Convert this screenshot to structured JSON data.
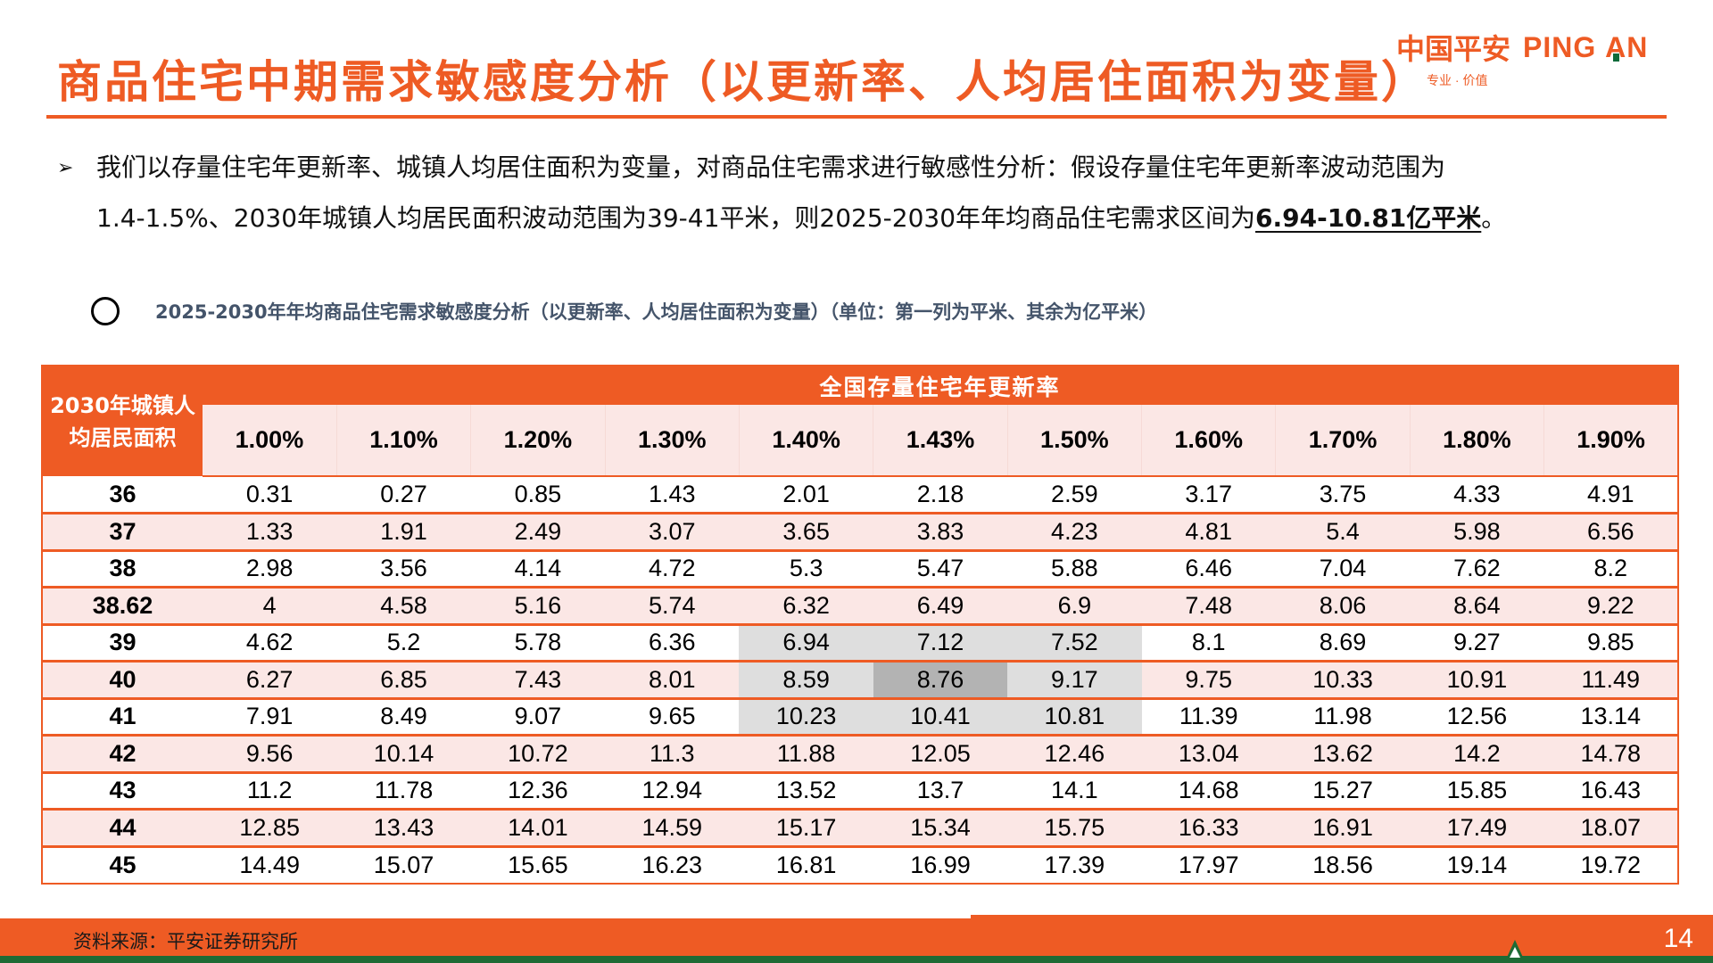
{
  "header": {
    "title": "商品住宅中期需求敏感度分析（以更新率、人均居住面积为变量）",
    "logo": {
      "cn": "中国平安",
      "en_prefix": "PING ",
      "en_a": "A",
      "en_suffix": "N",
      "tagline": "专业 · 价值"
    }
  },
  "bullet": {
    "icon": "arrow-bullet-icon",
    "line1": "我们以存量住宅年更新率、城镇人均居住面积为变量，对商品住宅需求进行敏感性分析：假设存量住宅年更新率波动范围为",
    "line2_prefix": "1.4-1.5%、2030年城镇人均居民面积波动范围为39-41平米，则2025-2030年年均商品住宅需求区间为",
    "line2_emphasis": "6.94-10.81亿平米",
    "line2_suffix": "。"
  },
  "caption": {
    "text": "2025-2030年年均商品住宅需求敏感度分析（以更新率、人均居住面积为变量）（单位：第一列为平米、其余为亿平米）"
  },
  "table": {
    "corner_header": "2030年城镇人均居民面积",
    "group_header": "全国存量住宅年更新率",
    "rates": [
      "1.00%",
      "1.10%",
      "1.20%",
      "1.30%",
      "1.40%",
      "1.43%",
      "1.50%",
      "1.60%",
      "1.70%",
      "1.80%",
      "1.90%"
    ],
    "rows": [
      {
        "area": "36",
        "values": [
          "0.31",
          "0.27",
          "0.85",
          "1.43",
          "2.01",
          "2.18",
          "2.59",
          "3.17",
          "3.75",
          "4.33",
          "4.91"
        ]
      },
      {
        "area": "37",
        "values": [
          "1.33",
          "1.91",
          "2.49",
          "3.07",
          "3.65",
          "3.83",
          "4.23",
          "4.81",
          "5.4",
          "5.98",
          "6.56"
        ]
      },
      {
        "area": "38",
        "values": [
          "2.98",
          "3.56",
          "4.14",
          "4.72",
          "5.3",
          "5.47",
          "5.88",
          "6.46",
          "7.04",
          "7.62",
          "8.2"
        ]
      },
      {
        "area": "38.62",
        "values": [
          "4",
          "4.58",
          "5.16",
          "5.74",
          "6.32",
          "6.49",
          "6.9",
          "7.48",
          "8.06",
          "8.64",
          "9.22"
        ]
      },
      {
        "area": "39",
        "values": [
          "4.62",
          "5.2",
          "5.78",
          "6.36",
          "6.94",
          "7.12",
          "7.52",
          "8.1",
          "8.69",
          "9.27",
          "9.85"
        ]
      },
      {
        "area": "40",
        "values": [
          "6.27",
          "6.85",
          "7.43",
          "8.01",
          "8.59",
          "8.76",
          "9.17",
          "9.75",
          "10.33",
          "10.91",
          "11.49"
        ]
      },
      {
        "area": "41",
        "values": [
          "7.91",
          "8.49",
          "9.07",
          "9.65",
          "10.23",
          "10.41",
          "10.81",
          "11.39",
          "11.98",
          "12.56",
          "13.14"
        ]
      },
      {
        "area": "42",
        "values": [
          "9.56",
          "10.14",
          "10.72",
          "11.3",
          "11.88",
          "12.05",
          "12.46",
          "13.04",
          "13.62",
          "14.2",
          "14.78"
        ]
      },
      {
        "area": "43",
        "values": [
          "11.2",
          "11.78",
          "12.36",
          "12.94",
          "13.52",
          "13.7",
          "14.1",
          "14.68",
          "15.27",
          "15.85",
          "16.43"
        ]
      },
      {
        "area": "44",
        "values": [
          "12.85",
          "13.43",
          "14.01",
          "14.59",
          "15.17",
          "15.34",
          "15.75",
          "16.33",
          "16.91",
          "17.49",
          "18.07"
        ]
      },
      {
        "area": "45",
        "values": [
          "14.49",
          "15.07",
          "15.65",
          "16.23",
          "16.81",
          "16.99",
          "17.39",
          "17.97",
          "18.56",
          "19.14",
          "19.72"
        ]
      }
    ],
    "highlight": {
      "rows": [
        "39",
        "40",
        "41"
      ],
      "rates": [
        "1.40%",
        "1.43%",
        "1.50%"
      ],
      "center": {
        "area": "40",
        "rate": "1.43%"
      },
      "highlight_color": "#DEDEDE",
      "center_color": "#B3B3B3"
    }
  },
  "footer": {
    "source": "资料来源：平安证券研究所",
    "page_number": "14"
  },
  "colors": {
    "brand_orange": "#EE5B24",
    "row_tint": "#FBE7E5",
    "caption_text": "#44546A",
    "brand_green": "#1E6B35"
  }
}
